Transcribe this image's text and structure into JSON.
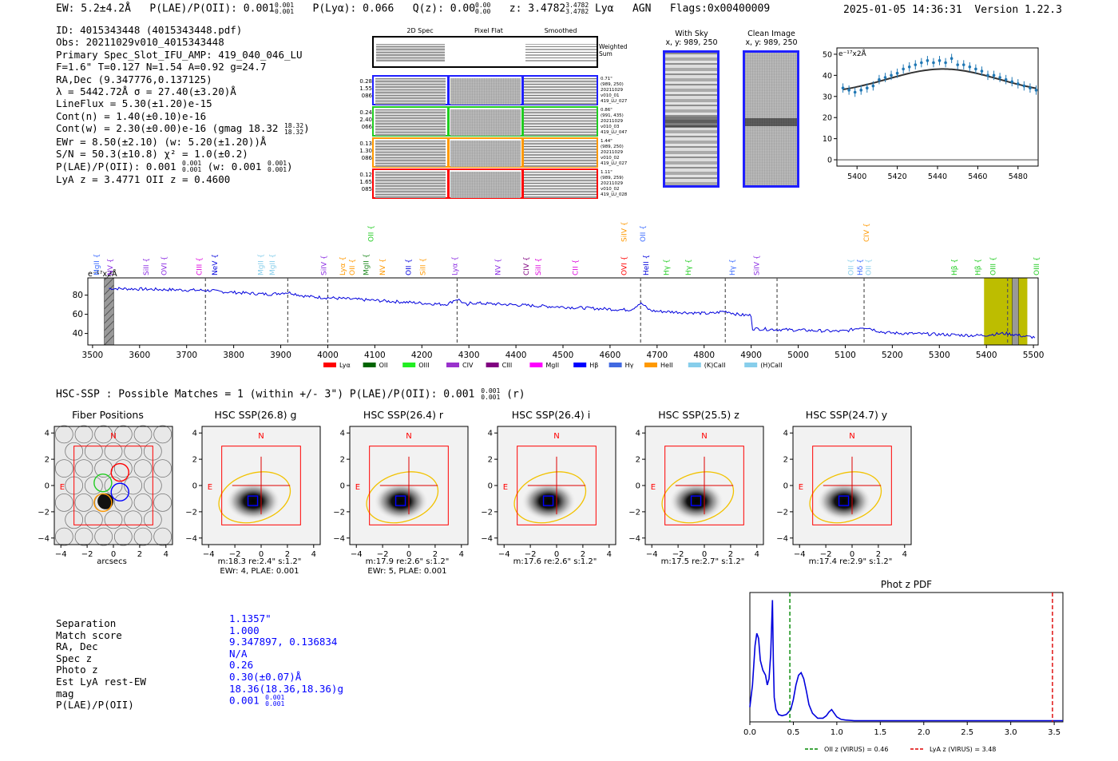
{
  "header": {
    "ew": "EW: 5.2±4.2Å",
    "plae_label": "P(LAE)/P(OII): 0.001",
    "plae_sup": "0.001",
    "plae_sub": "0.001",
    "plya": "P(Lyα): 0.066",
    "qz_label": "Q(z): 0.00",
    "qz_sup": "0.00",
    "qz_sub": "0.00",
    "z_label": "z: 3.4782",
    "z_sup": "3.4782",
    "z_sub": "3.4782",
    "line": "Lyα",
    "agn": "AGN",
    "flags": "Flags:0x00400009",
    "timestamp": "2025-01-05 14:36:31",
    "version": "Version 1.22.3"
  },
  "info": {
    "id": "ID: 4015343448 (4015343448.pdf)",
    "obs": "Obs: 20211029v010_4015343448",
    "primary": "Primary Spec_Slot_IFU_AMP: 419_040_046_LU",
    "fit": "F=1.6\"  T=0.127  N=1.54  A=0.92  g=24.7",
    "radec": "RA,Dec (9.347776,0.137125)",
    "lambda": "λ = 5442.72Å  σ = 27.40(±3.20)Å",
    "lineflux": "LineFlux = 5.30(±1.20)e-15",
    "contn": "Cont(n) = 1.40(±0.10)e-16",
    "contw": "Cont(w) = 2.30(±0.00)e-16 (gmag 18.32",
    "contw_sup": "18.32",
    "contw_sub": "18.32",
    "ewr": "EWr = 8.50(±2.10) (w: 5.20(±1.20))Å",
    "sn": "S/N = 50.3(±10.8)  χ² = 1.0(±0.2)",
    "plae": "P(LAE)/P(OII): 0.001",
    "plae_sup": "0.001",
    "plae_sub": "0.001",
    "plae_w": "(w: 0.001",
    "plae_w_sup": "0.001",
    "plae_w_sub": "0.001",
    "lyaz": "LyA z = 3.4771  OII z = 0.4600"
  },
  "cutouts": {
    "col_2d": "2D Spec",
    "col_flat": "Pixel Flat",
    "col_smooth": "Smoothed",
    "weighted": "Weighted Sum",
    "rows": [
      {
        "left": [
          "0.28",
          "1.55",
          "086"
        ],
        "right": [
          "0.71\"",
          "(989, 250)",
          "20211029",
          "v010_01",
          "419_LU_027"
        ],
        "color": "#1f1fff"
      },
      {
        "left": [
          "0.24",
          "2.40",
          "066"
        ],
        "right": [
          "0.86\"",
          "(991, 435)",
          "20211029",
          "v010_03",
          "419_LU_047"
        ],
        "color": "#22cc22"
      },
      {
        "left": [
          "0.13",
          "1.30",
          "086"
        ],
        "right": [
          "1.44\"",
          "(989, 250)",
          "20211029",
          "v010_02",
          "419_LU_027"
        ],
        "color": "#ff9900"
      },
      {
        "left": [
          "0.12",
          "1.65",
          "085"
        ],
        "right": [
          "1.11\"",
          "(989, 259)",
          "20211029",
          "v010_02",
          "419_LU_028"
        ],
        "color": "#ff0000"
      }
    ],
    "with_sky_title": "With Sky",
    "with_sky_xy": "x, y: 989, 250",
    "clean_title": "Clean Image",
    "clean_xy": "x, y: 989, 250"
  },
  "zoom_chart": {
    "type": "scatter",
    "ylabel": "e⁻¹⁷x2Å",
    "x": [
      5393,
      5396,
      5399,
      5402,
      5405,
      5408,
      5411,
      5414,
      5417,
      5420,
      5423,
      5426,
      5429,
      5432,
      5435,
      5438,
      5441,
      5444,
      5447,
      5450,
      5453,
      5456,
      5459,
      5462,
      5465,
      5468,
      5471,
      5474,
      5477,
      5480,
      5483,
      5486,
      5489
    ],
    "y": [
      34,
      33,
      32,
      33,
      34,
      35,
      38,
      39,
      40,
      41,
      43,
      44,
      45,
      46,
      47,
      46,
      47,
      46,
      48,
      45,
      45,
      44,
      43,
      42,
      40,
      40,
      39,
      38,
      37,
      36,
      35,
      34,
      33
    ],
    "fit": {
      "amplitude": 12,
      "mu": 5442.7,
      "sigma": 27.4,
      "base": 31
    },
    "xticks": [
      "5400",
      "5420",
      "5440",
      "5460",
      "5480"
    ],
    "yticks": [
      "0",
      "10",
      "20",
      "30",
      "40",
      "50"
    ],
    "xlim": [
      5390,
      5490
    ],
    "ylim": [
      -3,
      53
    ]
  },
  "spectrum": {
    "ylabel": "e⁻¹⁷x2Å",
    "xticks": [
      "3500",
      "3600",
      "3700",
      "3800",
      "3900",
      "4000",
      "4100",
      "4200",
      "4300",
      "4400",
      "4500",
      "4600",
      "4700",
      "4800",
      "4900",
      "5000",
      "5100",
      "5200",
      "5300",
      "5400",
      "5500"
    ],
    "yticks": [
      "40",
      "60",
      "80"
    ],
    "xlim": [
      3490,
      5510
    ],
    "ylim": [
      28,
      98
    ],
    "dashed_x": [
      3740,
      3915,
      4000,
      4275,
      4665,
      4845,
      4955,
      5140,
      5445
    ],
    "lines": [
      {
        "name": "MgII",
        "x": 3507,
        "color": "#3b6bff"
      },
      {
        "name": "NV",
        "x": 3536,
        "color": "#8a2be2"
      },
      {
        "name": "SiII",
        "x": 3612,
        "color": "#8a2be2"
      },
      {
        "name": "OVI",
        "x": 3650,
        "color": "#8a2be2"
      },
      {
        "name": "CIII",
        "x": 3725,
        "color": "#dd00dd"
      },
      {
        "name": "NeV",
        "x": 3758,
        "color": "#0000dd"
      },
      {
        "name": "MgII",
        "x": 3856,
        "color": "#87ceeb"
      },
      {
        "name": "MgII",
        "x": 3880,
        "color": "#87ceeb"
      },
      {
        "name": "SiIV",
        "x": 3990,
        "color": "#8a2be2"
      },
      {
        "name": "Lyα",
        "x": 4030,
        "color": "#ff9900"
      },
      {
        "name": "OII",
        "x": 4050,
        "color": "#ff9900"
      },
      {
        "name": "MgII",
        "x": 4080,
        "color": "#228b22"
      },
      {
        "name": "NV",
        "x": 4115,
        "color": "#ff9900"
      },
      {
        "name": "OII",
        "x": 4170,
        "color": "#0000dd"
      },
      {
        "name": "SiII",
        "x": 4200,
        "color": "#ff9900"
      },
      {
        "name": "Lyα",
        "x": 4268,
        "color": "#8a2be2"
      },
      {
        "name": "NV",
        "x": 4360,
        "color": "#8a2be2"
      },
      {
        "name": "CIV",
        "x": 4420,
        "color": "#800080"
      },
      {
        "name": "SiII",
        "x": 4446,
        "color": "#dd00dd"
      },
      {
        "name": "CII",
        "x": 4525,
        "color": "#dd00dd"
      },
      {
        "name": "OVI",
        "x": 4628,
        "color": "#ff0000"
      },
      {
        "name": "HeII",
        "x": 4675,
        "color": "#0000dd"
      },
      {
        "name": "Hγ",
        "x": 4718,
        "color": "#22cc22"
      },
      {
        "name": "Hγ",
        "x": 4765,
        "color": "#22cc22"
      },
      {
        "name": "Hγ",
        "x": 4858,
        "color": "#3b6bff"
      },
      {
        "name": "SiIV",
        "x": 4910,
        "color": "#8a2be2"
      },
      {
        "name": "OII",
        "x": 5110,
        "color": "#87ceeb"
      },
      {
        "name": "Hδ",
        "x": 5130,
        "color": "#3b6bff"
      },
      {
        "name": "OII",
        "x": 5148,
        "color": "#87ceeb"
      },
      {
        "name": "Hβ",
        "x": 5330,
        "color": "#22cc22"
      },
      {
        "name": "Hβ",
        "x": 5380,
        "color": "#22cc22"
      },
      {
        "name": "OIII",
        "x": 5412,
        "color": "#22cc22"
      },
      {
        "name": "OIII",
        "x": 5505,
        "color": "#22cc22"
      }
    ],
    "top_lines": [
      {
        "name": "OII",
        "x": 4090,
        "color": "#22cc22"
      },
      {
        "name": "SiIV",
        "x": 4628,
        "color": "#ff9900"
      },
      {
        "name": "OII",
        "x": 4668,
        "color": "#3b6bff"
      },
      {
        "name": "CIV",
        "x": 5143,
        "color": "#ff9900"
      }
    ],
    "legend": [
      {
        "name": "Lyα",
        "color": "#ff0000"
      },
      {
        "name": "OII",
        "color": "#006400"
      },
      {
        "name": "OIII",
        "color": "#22ee22"
      },
      {
        "name": "CIV",
        "color": "#9932cc"
      },
      {
        "name": "CIII",
        "color": "#800080"
      },
      {
        "name": "MgII",
        "color": "#ff00ff"
      },
      {
        "name": "Hβ",
        "color": "#0000ff"
      },
      {
        "name": "Hγ",
        "color": "#4169e1"
      },
      {
        "name": "HeII",
        "color": "#ff9900"
      },
      {
        "name": "(K)CaII",
        "color": "#87ceeb"
      },
      {
        "name": "(H)CaII",
        "color": "#87ceeb"
      }
    ]
  },
  "hsc": {
    "summary": "HSC-SSP : Possible Matches = 1 (within +/- 3\")  P(LAE)/P(OII): 0.001",
    "summary_sup": "0.001",
    "summary_sub": "0.001",
    "summary_band": "(r)",
    "panels": [
      {
        "title": "Fiber Positions",
        "caption1": "arcsecs",
        "caption2": ""
      },
      {
        "title": "HSC SSP(26.8) g",
        "caption1": "m:18.3  re:2.4\"  s:1.2\"",
        "caption2": "EWr: 4, PLAE: 0.001"
      },
      {
        "title": "HSC SSP(26.4) r",
        "caption1": "m:17.9  re:2.6\"  s:1.2\"",
        "caption2": "EWr: 5, PLAE: 0.001"
      },
      {
        "title": "HSC SSP(26.4) i",
        "caption1": "m:17.6  re:2.6\"  s:1.2\"",
        "caption2": ""
      },
      {
        "title": "HSC SSP(25.5) z",
        "caption1": "m:17.5  re:2.7\"  s:1.2\"",
        "caption2": ""
      },
      {
        "title": "HSC SSP(24.7) y",
        "caption1": "m:17.4  re:2.9\"  s:1.2\"",
        "caption2": ""
      }
    ],
    "ticks": [
      "4",
      "2",
      "0",
      "−2",
      "−4"
    ],
    "xticks": [
      "−4",
      "−2",
      "0",
      "2",
      "4"
    ],
    "north": "N",
    "east": "E"
  },
  "match": {
    "labels": [
      "Separation",
      "Match score",
      "RA, Dec",
      "Spec z",
      "Photo z",
      "Est LyA rest-EW",
      "mag",
      "P(LAE)/P(OII)"
    ],
    "values": [
      "1.1357\"",
      "1.000",
      "9.347897, 0.136834",
      "N/A",
      "0.26",
      "0.30(±0.07)Å",
      "18.36(18.36,18.36)g",
      "0.001"
    ],
    "plae_sup": "0.001",
    "plae_sub": "0.001"
  },
  "photz": {
    "title": "Phot z PDF",
    "xticks": [
      "0.0",
      "0.5",
      "1.0",
      "1.5",
      "2.0",
      "2.5",
      "3.0",
      "3.5"
    ],
    "xlim": [
      0,
      3.6
    ],
    "oii_z": 0.46,
    "lya_z": 3.48,
    "legend_oii": "OII z (VIRUS) = 0.46",
    "legend_lya": "LyA z (VIRUS) = 3.48",
    "pdf_x": [
      0,
      0.03,
      0.06,
      0.08,
      0.1,
      0.12,
      0.15,
      0.18,
      0.2,
      0.22,
      0.24,
      0.26,
      0.27,
      0.28,
      0.3,
      0.33,
      0.37,
      0.42,
      0.47,
      0.5,
      0.53,
      0.56,
      0.59,
      0.62,
      0.65,
      0.68,
      0.72,
      0.78,
      0.84,
      0.88,
      0.91,
      0.94,
      0.97,
      1.0,
      1.05,
      1.1,
      1.2,
      1.4,
      1.8,
      2.5,
      3.0,
      3.6
    ],
    "pdf_y": [
      0.12,
      0.3,
      0.62,
      0.72,
      0.68,
      0.5,
      0.42,
      0.38,
      0.3,
      0.35,
      0.55,
      0.99,
      0.5,
      0.2,
      0.1,
      0.06,
      0.05,
      0.06,
      0.1,
      0.18,
      0.3,
      0.38,
      0.4,
      0.35,
      0.25,
      0.14,
      0.07,
      0.03,
      0.03,
      0.05,
      0.08,
      0.1,
      0.07,
      0.04,
      0.02,
      0.015,
      0.01,
      0.01,
      0.01,
      0.01,
      0.01,
      0.01
    ]
  }
}
